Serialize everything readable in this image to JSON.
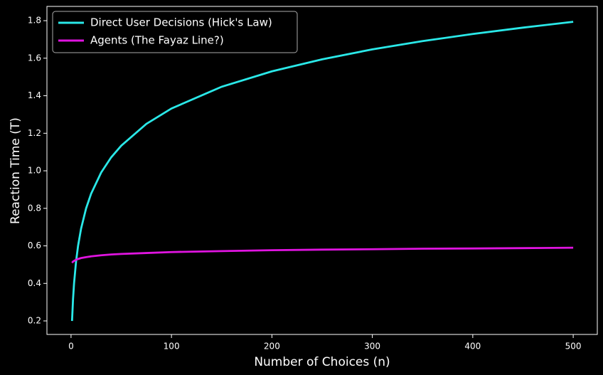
{
  "chart_data": {
    "type": "line",
    "x_label": "Number of Choices (n)",
    "y_label": "Reaction Time (T)",
    "x": [
      1,
      2,
      3,
      5,
      7,
      10,
      15,
      20,
      30,
      40,
      50,
      75,
      100,
      150,
      200,
      250,
      300,
      350,
      400,
      450,
      500
    ],
    "series": [
      {
        "name": "Direct User Decisions (Hick's Law)",
        "color": "#2ae8e8",
        "values": [
          0.2,
          0.317,
          0.4,
          0.517,
          0.6,
          0.692,
          0.8,
          0.878,
          0.991,
          1.072,
          1.134,
          1.25,
          1.332,
          1.448,
          1.53,
          1.594,
          1.647,
          1.691,
          1.729,
          1.763,
          1.794
        ]
      },
      {
        "name": "Agents (The Fayaz Line?)",
        "color": "#e014e0",
        "values": [
          0.51,
          0.516,
          0.52,
          0.526,
          0.53,
          0.535,
          0.54,
          0.544,
          0.55,
          0.554,
          0.557,
          0.562,
          0.567,
          0.572,
          0.577,
          0.58,
          0.582,
          0.585,
          0.586,
          0.588,
          0.59
        ]
      }
    ],
    "xlim": [
      -24,
      524
    ],
    "xticks": [
      0,
      100,
      200,
      300,
      400,
      500
    ],
    "ylim": [
      0.128,
      1.876
    ],
    "yticks": [
      0.2,
      0.4,
      0.6,
      0.8,
      {
        "value": 1,
        "label": "1.0"
      },
      1.2,
      1.4,
      1.6,
      1.8
    ],
    "legend": "upper left",
    "grid": false
  }
}
